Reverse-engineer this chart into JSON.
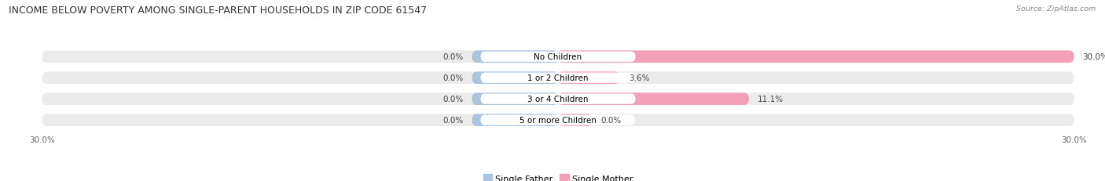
{
  "title": "INCOME BELOW POVERTY AMONG SINGLE-PARENT HOUSEHOLDS IN ZIP CODE 61547",
  "source": "Source: ZipAtlas.com",
  "categories": [
    "No Children",
    "1 or 2 Children",
    "3 or 4 Children",
    "5 or more Children"
  ],
  "single_father": [
    0.0,
    0.0,
    0.0,
    0.0
  ],
  "single_mother": [
    30.0,
    3.6,
    11.1,
    0.0
  ],
  "x_min": -30.0,
  "x_max": 30.0,
  "father_color": "#aac4de",
  "mother_color": "#f4a0b8",
  "bar_bg_color": "#ebebeb",
  "bg_color": "#ffffff",
  "title_fontsize": 9.0,
  "label_fontsize": 7.5,
  "value_fontsize": 7.5,
  "tick_fontsize": 7.5,
  "legend_fontsize": 8.0,
  "father_bar_width": 5.0,
  "mother_bar_small": 2.0
}
